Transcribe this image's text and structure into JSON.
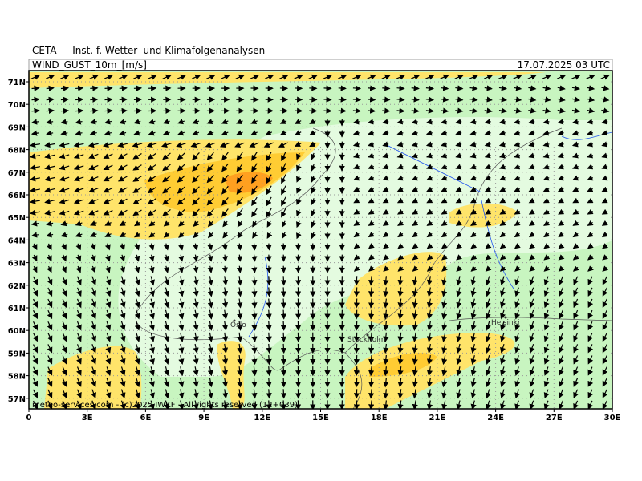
{
  "header": {
    "source": "CETA — Inst. f. Wetter- und Klimafolgenanalysen —",
    "variable": "WIND_GUST_10m_[m/s]",
    "datetime": "17.07.2025 03 UTC"
  },
  "map": {
    "lat_labels": [
      "71N",
      "70N",
      "69N",
      "68N",
      "67N",
      "66N",
      "65N",
      "64N",
      "63N",
      "62N",
      "61N",
      "60N",
      "59N",
      "58N",
      "57N"
    ],
    "lon_labels": [
      "0",
      "3E",
      "6E",
      "9E",
      "12E",
      "15E",
      "18E",
      "21E",
      "24E",
      "27E",
      "30E"
    ],
    "cities": [
      "Oslo",
      "Stockholm",
      "Helsinki"
    ],
    "footer": "meteo-services.com - (c)2025 IWKF - All rights reserved (12+039)"
  }
}
